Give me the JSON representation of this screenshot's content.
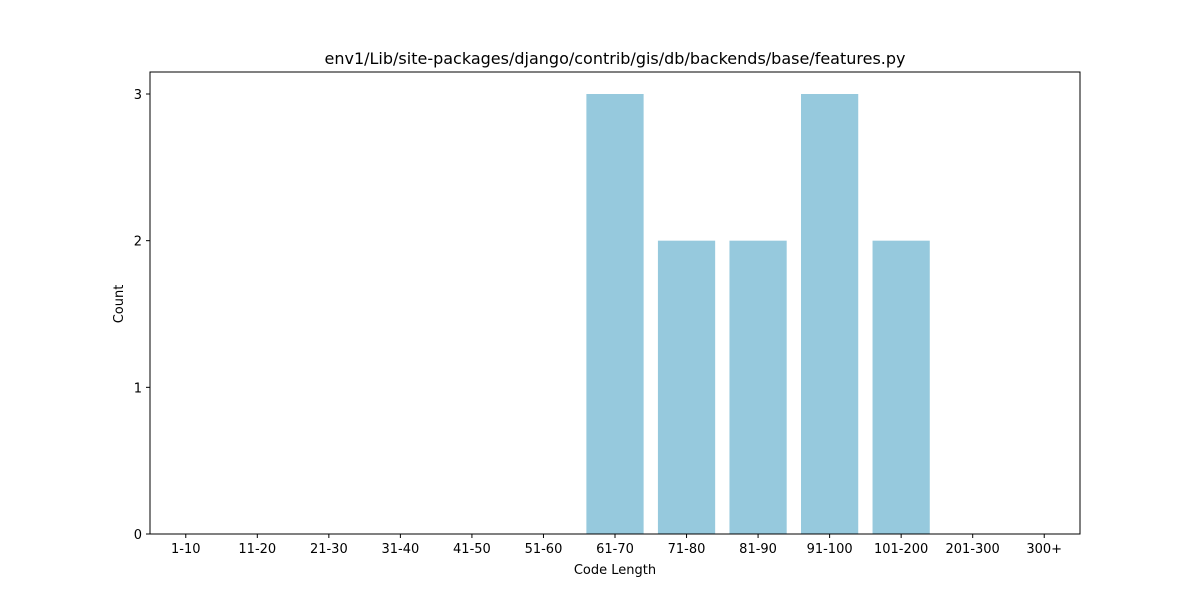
{
  "chart_data": {
    "type": "bar",
    "title": "env1/Lib/site-packages/django/contrib/gis/db/backends/base/features.py",
    "xlabel": "Code Length",
    "ylabel": "Count",
    "categories": [
      "1-10",
      "11-20",
      "21-30",
      "31-40",
      "41-50",
      "51-60",
      "61-70",
      "71-80",
      "81-90",
      "91-100",
      "101-200",
      "201-300",
      "300+"
    ],
    "values": [
      0,
      0,
      0,
      0,
      0,
      0,
      3,
      2,
      2,
      3,
      2,
      0,
      0
    ],
    "ylim": [
      0,
      3.15
    ],
    "yticks": [
      0,
      1,
      2,
      3
    ],
    "bar_color": "#96c9dd",
    "grid": false
  }
}
